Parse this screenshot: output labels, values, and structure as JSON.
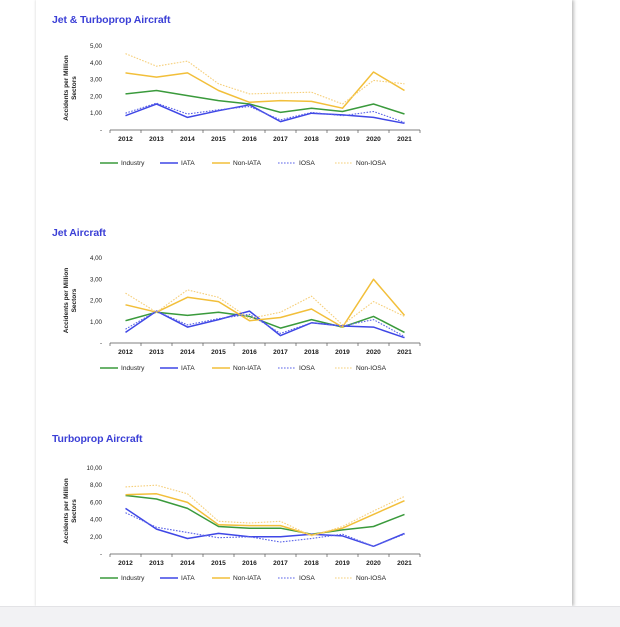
{
  "colors": {
    "industry": "#3a9a3c",
    "iata": "#3f47e6",
    "non_iata": "#f2bf3a",
    "iosa": "#5a63e8",
    "non_iosa": "#f6cf7a",
    "title": "#3b3fd6"
  },
  "chart_data": [
    {
      "type": "line",
      "title": "Jet & Turboprop Aircraft",
      "ylabel": "Accidents per Million Sectors",
      "ylim": [
        0,
        5
      ],
      "yticks": [
        "5,00",
        "4,00",
        "3,00",
        "2,00",
        "1,00",
        "-"
      ],
      "categories": [
        "2012",
        "2013",
        "2014",
        "2015",
        "2016",
        "2017",
        "2018",
        "2019",
        "2020",
        "2021"
      ],
      "legend": "bottom",
      "series": [
        {
          "name": "Industry",
          "style": "solid",
          "color_key": "industry",
          "values": [
            2.15,
            2.35,
            2.05,
            1.75,
            1.55,
            1.05,
            1.3,
            1.1,
            1.55,
            0.95
          ]
        },
        {
          "name": "IATA",
          "style": "solid",
          "color_key": "iata",
          "values": [
            0.85,
            1.55,
            0.75,
            1.15,
            1.5,
            0.5,
            1.0,
            0.9,
            0.75,
            0.4
          ]
        },
        {
          "name": "Non-IATA",
          "style": "solid",
          "color_key": "non_iata",
          "values": [
            3.4,
            3.15,
            3.4,
            2.35,
            1.65,
            1.75,
            1.7,
            1.3,
            3.45,
            2.35
          ]
        },
        {
          "name": "IOSA",
          "style": "dotted",
          "color_key": "iosa",
          "values": [
            1.0,
            1.6,
            0.95,
            1.2,
            1.4,
            0.6,
            1.05,
            0.85,
            1.1,
            0.45
          ]
        },
        {
          "name": "Non-IOSA",
          "style": "dotted",
          "color_key": "non_iosa",
          "values": [
            4.55,
            3.8,
            4.1,
            2.75,
            2.15,
            2.2,
            2.25,
            1.55,
            2.95,
            2.75
          ]
        }
      ]
    },
    {
      "type": "line",
      "title": "Jet Aircraft",
      "ylabel": "Accidents per Million Sectors",
      "ylim": [
        0,
        4
      ],
      "yticks": [
        "4,00",
        "3,00",
        "2,00",
        "1,00",
        "-"
      ],
      "categories": [
        "2012",
        "2013",
        "2014",
        "2015",
        "2016",
        "2017",
        "2018",
        "2019",
        "2020",
        "2021"
      ],
      "legend": "bottom",
      "series": [
        {
          "name": "Industry",
          "style": "solid",
          "color_key": "industry",
          "values": [
            1.05,
            1.45,
            1.3,
            1.45,
            1.25,
            0.7,
            1.1,
            0.75,
            1.25,
            0.5
          ]
        },
        {
          "name": "IATA",
          "style": "solid",
          "color_key": "iata",
          "values": [
            0.5,
            1.5,
            0.75,
            1.1,
            1.5,
            0.35,
            0.95,
            0.8,
            0.75,
            0.25
          ]
        },
        {
          "name": "Non-IATA",
          "style": "solid",
          "color_key": "non_iata",
          "values": [
            1.8,
            1.45,
            2.15,
            1.95,
            1.05,
            1.2,
            1.6,
            0.75,
            3.0,
            1.3
          ]
        },
        {
          "name": "IOSA",
          "style": "dotted",
          "color_key": "iosa",
          "values": [
            0.65,
            1.5,
            0.85,
            1.15,
            1.35,
            0.45,
            0.95,
            0.8,
            1.1,
            0.3
          ]
        },
        {
          "name": "Non-IOSA",
          "style": "dotted",
          "color_key": "non_iosa",
          "values": [
            2.35,
            1.45,
            2.5,
            2.15,
            1.15,
            1.45,
            2.2,
            0.85,
            1.95,
            1.25
          ]
        }
      ]
    },
    {
      "type": "line",
      "title": "Turboprop Aircraft",
      "ylabel": "Accidents per Million Sectors",
      "ylim": [
        0,
        10
      ],
      "yticks": [
        "10,00",
        "8,00",
        "6,00",
        "4,00",
        "2,00",
        "-"
      ],
      "categories": [
        "2012",
        "2013",
        "2014",
        "2015",
        "2016",
        "2017",
        "2018",
        "2019",
        "2020",
        "2021"
      ],
      "legend": "bottom",
      "series": [
        {
          "name": "Industry",
          "style": "solid",
          "color_key": "industry",
          "values": [
            6.8,
            6.4,
            5.3,
            3.2,
            3.0,
            3.0,
            2.3,
            2.8,
            3.2,
            4.6
          ]
        },
        {
          "name": "IATA",
          "style": "solid",
          "color_key": "iata",
          "values": [
            5.3,
            2.9,
            1.8,
            2.4,
            2.0,
            2.0,
            2.3,
            2.1,
            0.9,
            2.4
          ]
        },
        {
          "name": "Non-IATA",
          "style": "solid",
          "color_key": "non_iata",
          "values": [
            6.9,
            7.0,
            6.0,
            3.4,
            3.3,
            3.3,
            2.2,
            3.0,
            4.6,
            6.2
          ]
        },
        {
          "name": "IOSA",
          "style": "dotted",
          "color_key": "iosa",
          "values": [
            4.8,
            3.1,
            2.5,
            1.9,
            2.0,
            1.4,
            1.8,
            2.3,
            0.9,
            2.3
          ]
        },
        {
          "name": "Non-IOSA",
          "style": "dotted",
          "color_key": "non_iosa",
          "values": [
            7.8,
            8.0,
            7.0,
            3.8,
            3.6,
            3.8,
            2.1,
            3.2,
            5.0,
            6.7
          ]
        }
      ]
    }
  ]
}
